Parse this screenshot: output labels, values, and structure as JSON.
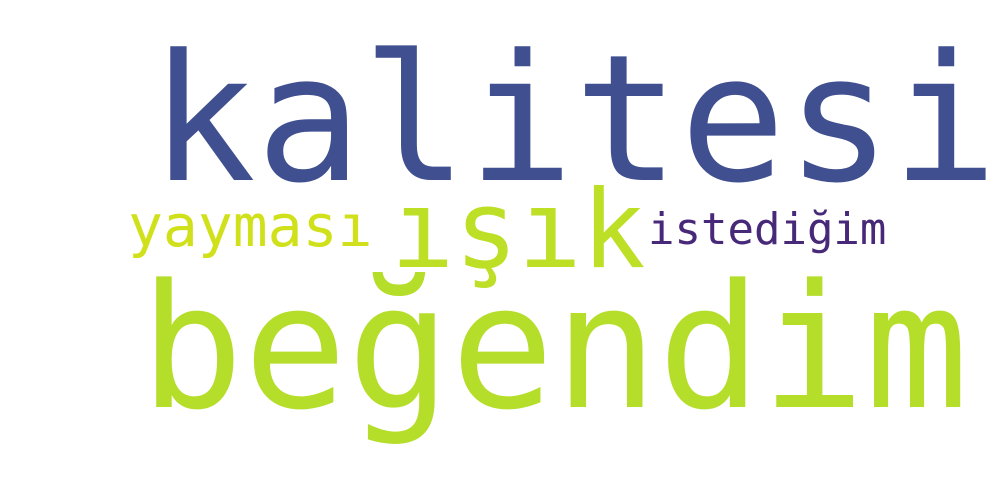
{
  "words": [
    {
      "id": "kalitesi",
      "text": "kalitesi",
      "color": "#3f4f8f"
    },
    {
      "id": "begendim",
      "text": "beğendim",
      "color": "#b5de2b"
    },
    {
      "id": "isik",
      "text": "ışık",
      "color": "#bddf26"
    },
    {
      "id": "yaymasi",
      "text": "yayması",
      "color": "#d0e11c"
    },
    {
      "id": "istedigim",
      "text": "istediğim",
      "color": "#482878"
    }
  ]
}
